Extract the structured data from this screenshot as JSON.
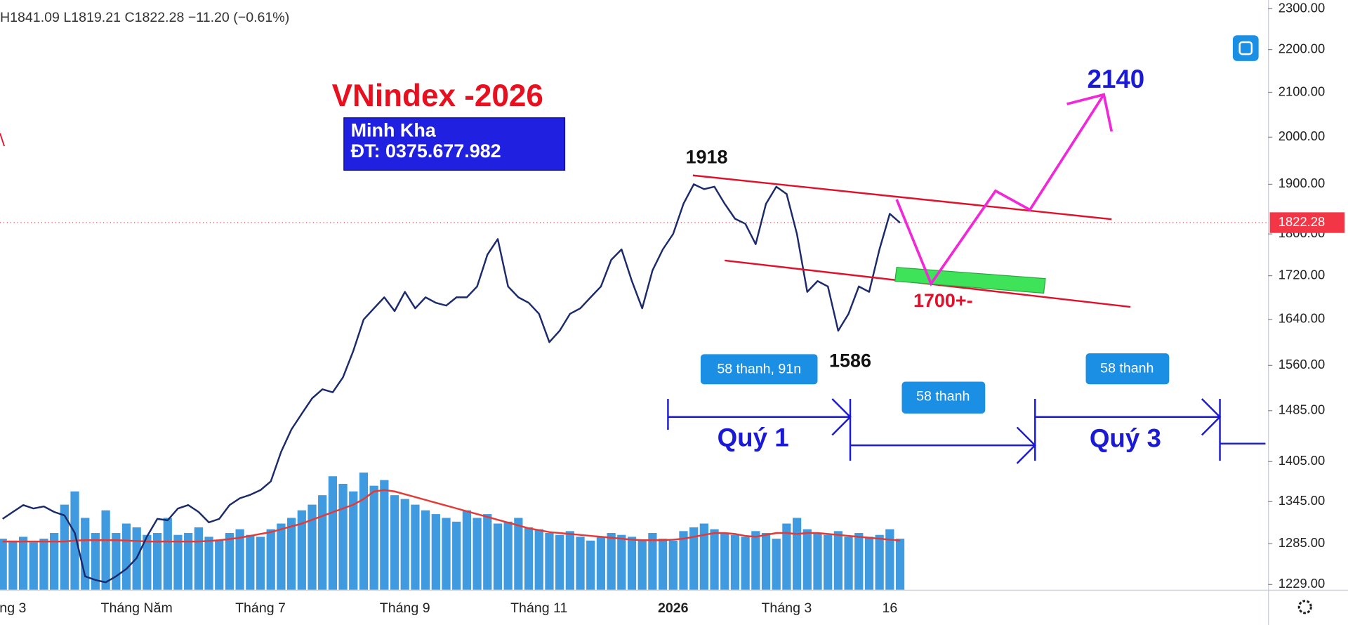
{
  "chart_data": {
    "type": "line",
    "header": "H1841.09 L1819.21 C1822.28 −11.20 (−0.61%)",
    "title": "VNindex -2026",
    "contact": [
      "Minh Kha",
      "ĐT: 0375.677.982"
    ],
    "annotations": {
      "high": "1918",
      "low": "1586",
      "target": "2140",
      "support": "1700+-",
      "box1": "58 thanh, 91n",
      "box2": "58 thanh",
      "box3": "58 thanh",
      "q1": "Quý 1",
      "q3": "Quý 3"
    },
    "categories": [
      null,
      "ng 3",
      null,
      null,
      null,
      null,
      null,
      null,
      null,
      null,
      null,
      null,
      null,
      "Tháng Năm",
      null,
      null,
      null,
      null,
      null,
      null,
      null,
      null,
      null,
      null,
      null,
      "Tháng 7",
      null,
      null,
      null,
      null,
      null,
      null,
      null,
      null,
      null,
      null,
      null,
      null,
      null,
      "Tháng 9",
      null,
      null,
      null,
      null,
      null,
      null,
      null,
      null,
      null,
      null,
      null,
      null,
      "Tháng 11",
      null,
      null,
      null,
      null,
      null,
      null,
      null,
      null,
      null,
      null,
      null,
      null,
      "2026",
      null,
      null,
      null,
      null,
      null,
      null,
      null,
      null,
      null,
      null,
      "Tháng 3",
      null,
      null,
      null,
      null,
      null,
      null,
      null,
      null,
      null,
      "16",
      null
    ],
    "values": [
      1320,
      1330,
      1340,
      1335,
      1338,
      1330,
      1325,
      1300,
      1240,
      1235,
      1232,
      1240,
      1250,
      1265,
      1295,
      1320,
      1318,
      1335,
      1340,
      1330,
      1315,
      1320,
      1340,
      1350,
      1355,
      1362,
      1375,
      1420,
      1455,
      1480,
      1505,
      1520,
      1515,
      1540,
      1585,
      1640,
      1660,
      1680,
      1655,
      1690,
      1660,
      1680,
      1670,
      1665,
      1680,
      1680,
      1700,
      1760,
      1790,
      1700,
      1680,
      1670,
      1650,
      1600,
      1620,
      1650,
      1660,
      1680,
      1700,
      1750,
      1770,
      1710,
      1660,
      1730,
      1770,
      1800,
      1860,
      1900,
      1890,
      1895,
      1860,
      1830,
      1820,
      1780,
      1860,
      1895,
      1880,
      1800,
      1690,
      1710,
      1700,
      1620,
      1650,
      1700,
      1690,
      1770,
      1840,
      1822
    ],
    "color": "#1b2a6b",
    "ylim": [
      1222,
      2322
    ],
    "log_scale": true,
    "yticks": [
      {
        "value": 1229,
        "label": "1229.00"
      },
      {
        "value": 1285,
        "label": "1285.00"
      },
      {
        "value": 1345,
        "label": "1345.00"
      },
      {
        "value": 1405,
        "label": "1405.00"
      },
      {
        "value": 1485,
        "label": "1485.00"
      },
      {
        "value": 1560,
        "label": "1560.00"
      },
      {
        "value": 1640,
        "label": "1640.00"
      },
      {
        "value": 1720,
        "label": "1720.00"
      },
      {
        "value": 1800,
        "label": "1800.00"
      },
      {
        "value": 1900,
        "label": "1900.00"
      },
      {
        "value": 2000,
        "label": "2000.00"
      },
      {
        "value": 2100,
        "label": "2100.00"
      },
      {
        "value": 2200,
        "label": "2200.00"
      },
      {
        "value": 2300,
        "label": "2300.00"
      }
    ],
    "last_price": 1822.28,
    "last_price_color": "#f23645",
    "volume": {
      "color": "#2b8fdc",
      "ylim": [
        0,
        1000
      ],
      "values": [
        270,
        260,
        280,
        250,
        270,
        300,
        450,
        520,
        380,
        300,
        420,
        300,
        350,
        330,
        290,
        300,
        380,
        290,
        300,
        330,
        280,
        260,
        300,
        320,
        290,
        280,
        320,
        350,
        380,
        420,
        450,
        500,
        600,
        560,
        520,
        620,
        550,
        580,
        500,
        480,
        450,
        420,
        400,
        380,
        360,
        420,
        380,
        400,
        350,
        360,
        380,
        330,
        320,
        300,
        290,
        310,
        280,
        260,
        280,
        300,
        290,
        280,
        260,
        300,
        270,
        260,
        310,
        330,
        350,
        320,
        300,
        290,
        280,
        310,
        300,
        270,
        350,
        380,
        320,
        300,
        290,
        310,
        280,
        300,
        280,
        290,
        320,
        270
      ],
      "ma": {
        "color": "#e53935",
        "values": [
          255,
          255,
          255,
          255,
          255,
          255,
          255,
          260,
          262,
          262,
          262,
          262,
          260,
          258,
          255,
          255,
          255,
          255,
          255,
          255,
          258,
          262,
          268,
          275,
          285,
          295,
          305,
          320,
          335,
          350,
          370,
          390,
          410,
          430,
          450,
          480,
          520,
          527,
          520,
          505,
          490,
          475,
          460,
          445,
          430,
          415,
          400,
          385,
          370,
          355,
          340,
          325,
          315,
          305,
          300,
          295,
          290,
          285,
          280,
          275,
          270,
          265,
          262,
          262,
          262,
          265,
          270,
          280,
          290,
          300,
          300,
          295,
          285,
          280,
          290,
          300,
          300,
          295,
          300,
          300,
          295,
          290,
          285,
          280,
          275,
          270,
          265,
          260
        ]
      }
    }
  }
}
